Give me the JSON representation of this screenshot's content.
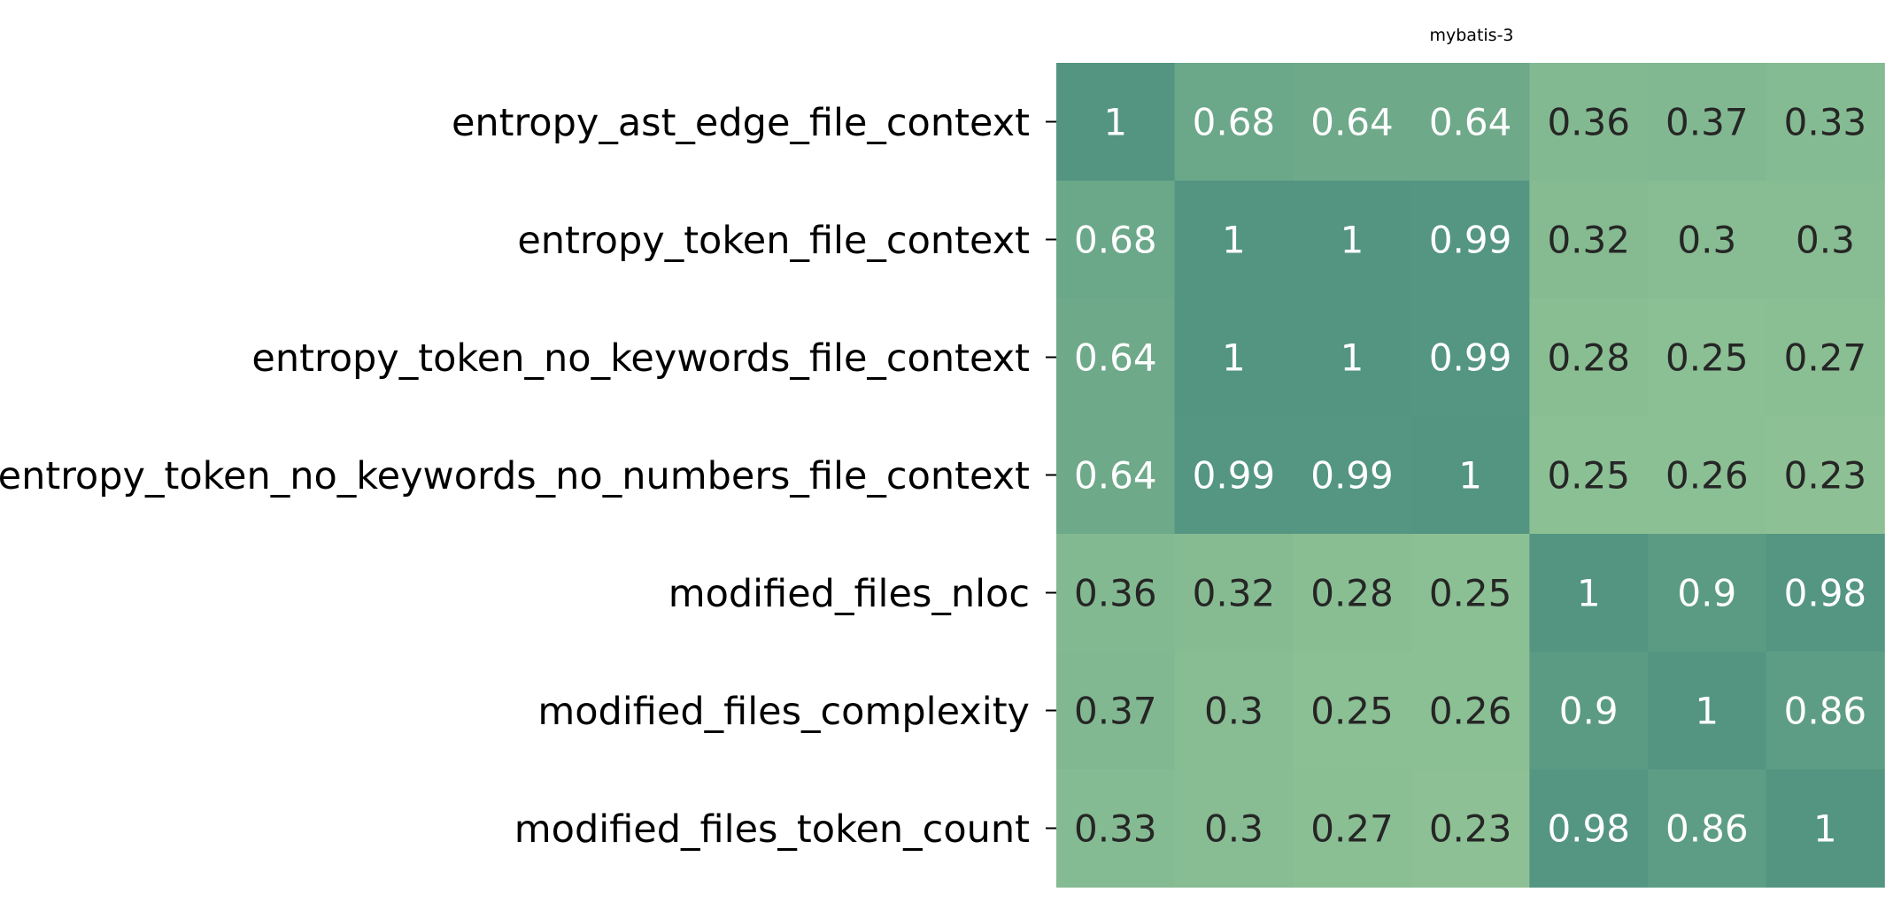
{
  "chart_data": {
    "type": "heatmap",
    "title": "mybatis-3",
    "row_labels": [
      "entropy_ast_edge_file_context",
      "entropy_token_file_context",
      "entropy_token_no_keywords_file_context",
      "entropy_token_no_keywords_no_numbers_file_context",
      "modified_files_nloc",
      "modified_files_complexity",
      "modified_files_token_count"
    ],
    "column_labels": [],
    "values": [
      [
        1,
        0.68,
        0.64,
        0.64,
        0.36,
        0.37,
        0.33
      ],
      [
        0.68,
        1,
        1,
        0.99,
        0.32,
        0.3,
        0.3
      ],
      [
        0.64,
        1,
        1,
        0.99,
        0.28,
        0.25,
        0.27
      ],
      [
        0.64,
        0.99,
        0.99,
        1,
        0.25,
        0.26,
        0.23
      ],
      [
        0.36,
        0.32,
        0.28,
        0.25,
        1,
        0.9,
        0.98
      ],
      [
        0.37,
        0.3,
        0.25,
        0.26,
        0.9,
        1,
        0.86
      ],
      [
        0.33,
        0.3,
        0.27,
        0.23,
        0.98,
        0.86,
        1
      ]
    ],
    "value_labels": [
      [
        "1",
        "0.68",
        "0.64",
        "0.64",
        "0.36",
        "0.37",
        "0.33"
      ],
      [
        "0.68",
        "1",
        "1",
        "0.99",
        "0.32",
        "0.3",
        "0.3"
      ],
      [
        "0.64",
        "1",
        "1",
        "0.99",
        "0.28",
        "0.25",
        "0.27"
      ],
      [
        "0.64",
        "0.99",
        "0.99",
        "1",
        "0.25",
        "0.26",
        "0.23"
      ],
      [
        "0.36",
        "0.32",
        "0.28",
        "0.25",
        "1",
        "0.9",
        "0.98"
      ],
      [
        "0.37",
        "0.3",
        "0.25",
        "0.26",
        "0.9",
        "1",
        "0.86"
      ],
      [
        "0.33",
        "0.3",
        "0.27",
        "0.23",
        "0.98",
        "0.86",
        "1"
      ]
    ],
    "colorscale": {
      "low_value": 0.2,
      "high_value": 1.0,
      "low_color": "#8fc295",
      "high_color": "#539581"
    },
    "text_color_light": "#ffffff",
    "text_color_dark": "#262626",
    "text_threshold": 0.5,
    "colorbar": false,
    "grid": false
  }
}
